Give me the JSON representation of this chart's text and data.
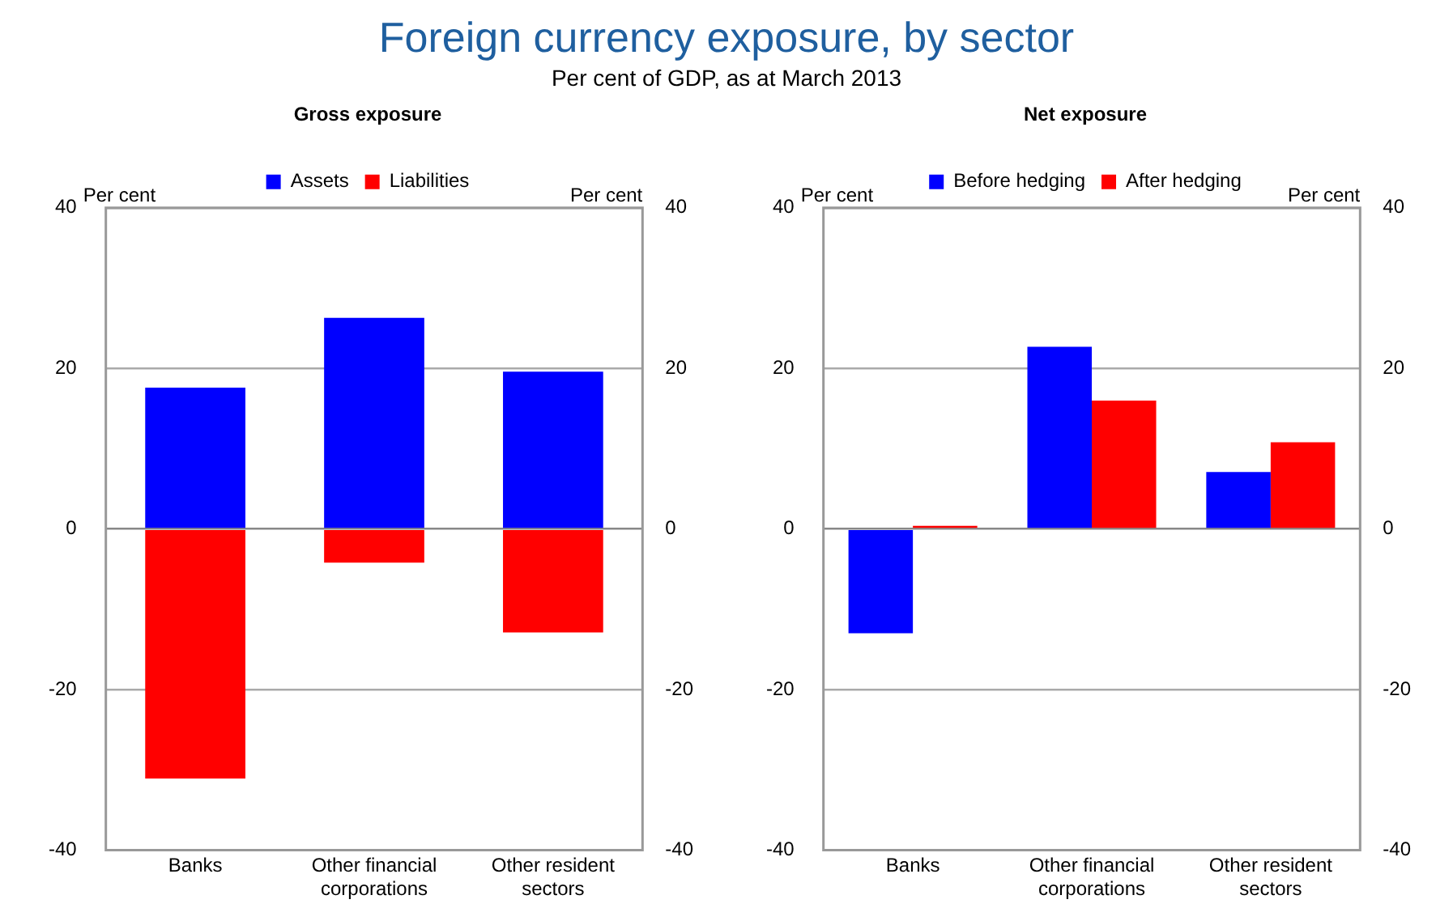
{
  "chart_data": [
    {
      "type": "other",
      "title": "Foreign currency exposure, by sector",
      "subtitle": "Per cent of GDP, as at March 2013"
    },
    {
      "type": "bar",
      "title": "Gross exposure",
      "ylabel": "Per cent",
      "y2label": "Per cent",
      "categories": [
        "Banks",
        "Other financial corporations",
        "Other resident sectors"
      ],
      "stacked": true,
      "series": [
        {
          "name": "Assets",
          "color": "#0000ff",
          "values": [
            17.6,
            26.3,
            19.6
          ]
        },
        {
          "name": "Liabilities",
          "color": "#ff0000",
          "values": [
            -31.1,
            -4.2,
            -12.9
          ]
        }
      ],
      "ylim": [
        -40,
        40
      ],
      "yticks": [
        -40,
        -20,
        0,
        20,
        40
      ],
      "y2lim": [
        -40,
        40
      ],
      "y2ticks": [
        -40,
        -20,
        0,
        20,
        40
      ],
      "grid": "y",
      "legend": "top"
    },
    {
      "type": "bar",
      "title": "Net exposure",
      "ylabel": "Per cent",
      "y2label": "Per cent",
      "categories": [
        "Banks",
        "Other financial corporations",
        "Other resident sectors"
      ],
      "series": [
        {
          "name": "Before hedging",
          "color": "#0000ff",
          "values": [
            -13.0,
            22.7,
            7.1
          ]
        },
        {
          "name": "After hedging",
          "color": "#ff0000",
          "values": [
            0.4,
            16.0,
            10.8
          ]
        }
      ],
      "ylim": [
        -40,
        40
      ],
      "yticks": [
        -40,
        -20,
        0,
        20,
        40
      ],
      "y2lim": [
        -40,
        40
      ],
      "y2ticks": [
        -40,
        -20,
        0,
        20,
        40
      ],
      "grid": "y",
      "legend": "top"
    }
  ]
}
